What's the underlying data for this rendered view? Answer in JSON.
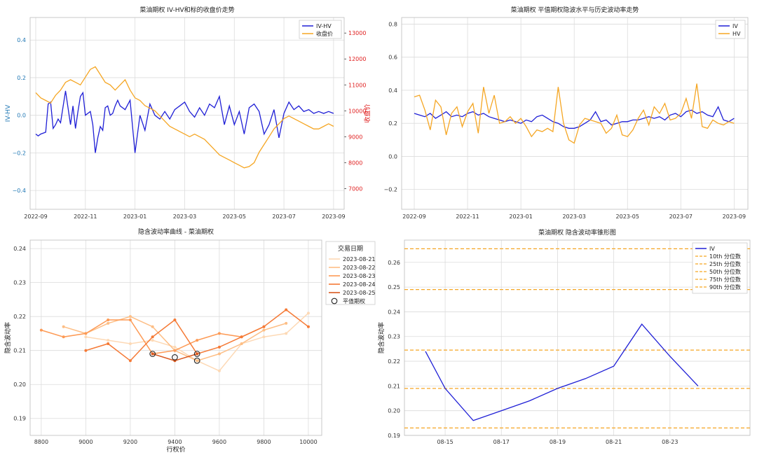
{
  "charts": [
    {
      "id": "c1",
      "type": "line",
      "title": "菜油期权 IV-HV和标的收盘价走势",
      "ylabel_left": "IV-HV",
      "ylabel_right": "收盘价",
      "x_ticks": [
        "2022-09",
        "2022-11",
        "2023-01",
        "2023-03",
        "2023-05",
        "2023-07",
        "2023-09"
      ],
      "x_range": [
        0,
        12.2
      ],
      "x_tick_pos": [
        0,
        2,
        4,
        6,
        8,
        10,
        12
      ],
      "y_left_range": [
        -0.5,
        0.52
      ],
      "y_left_ticks": [
        -0.4,
        -0.2,
        0.0,
        0.2,
        0.4
      ],
      "y_left_tick_labels": [
        "−0.4",
        "−0.2",
        "0.0",
        "0.2",
        "0.4"
      ],
      "y_right_range": [
        6200,
        13600
      ],
      "y_right_ticks": [
        7000,
        8000,
        9000,
        10000,
        11000,
        12000,
        13000
      ],
      "y_right_tick_labels": [
        "7000",
        "8000",
        "9000",
        "10000",
        "11000",
        "12000",
        "13000"
      ],
      "legend_position": "top-right",
      "series": [
        {
          "name": "IV-HV",
          "axis": "left",
          "color": "#1f1fd6",
          "x": [
            0,
            0.1,
            0.2,
            0.4,
            0.5,
            0.6,
            0.7,
            0.8,
            0.9,
            1.0,
            1.2,
            1.4,
            1.5,
            1.6,
            1.7,
            1.8,
            1.9,
            2.0,
            2.2,
            2.3,
            2.4,
            2.5,
            2.6,
            2.7,
            2.8,
            2.9,
            3.0,
            3.1,
            3.2,
            3.3,
            3.4,
            3.6,
            3.8,
            4.0,
            4.2,
            4.4,
            4.6,
            4.8,
            5.0,
            5.2,
            5.4,
            5.6,
            5.8,
            6.0,
            6.2,
            6.4,
            6.6,
            6.8,
            7.0,
            7.2,
            7.4,
            7.6,
            7.8,
            8.0,
            8.2,
            8.4,
            8.6,
            8.8,
            9.0,
            9.2,
            9.4,
            9.6,
            9.8,
            10.0,
            10.2,
            10.4,
            10.6,
            10.8,
            11.0,
            11.2,
            11.4,
            11.6,
            11.8,
            12.0
          ],
          "y": [
            -0.1,
            -0.11,
            -0.1,
            -0.09,
            0.06,
            0.07,
            -0.07,
            -0.05,
            -0.02,
            -0.04,
            0.13,
            -0.05,
            0.05,
            -0.07,
            0.02,
            0.1,
            0.12,
            0.0,
            0.02,
            -0.05,
            -0.2,
            -0.12,
            -0.06,
            -0.08,
            0.04,
            0.05,
            0.0,
            0.01,
            0.05,
            0.08,
            0.05,
            0.03,
            0.08,
            -0.2,
            0.0,
            -0.08,
            0.06,
            0.0,
            -0.02,
            0.02,
            -0.02,
            0.03,
            0.05,
            0.07,
            0.02,
            -0.01,
            0.04,
            0.0,
            0.06,
            0.04,
            0.1,
            -0.05,
            0.05,
            -0.05,
            0.02,
            -0.1,
            0.04,
            0.06,
            0.02,
            -0.1,
            -0.05,
            0.03,
            -0.12,
            0.01,
            0.07,
            0.03,
            0.05,
            0.02,
            0.03,
            0.01,
            0.02,
            0.01,
            0.02,
            0.01
          ]
        },
        {
          "name": "收盘价",
          "axis": "right",
          "color": "#f5a623",
          "x": [
            0,
            0.2,
            0.4,
            0.6,
            0.8,
            1.0,
            1.2,
            1.4,
            1.6,
            1.8,
            2.0,
            2.2,
            2.4,
            2.6,
            2.8,
            3.0,
            3.2,
            3.4,
            3.6,
            3.8,
            4.0,
            4.2,
            4.4,
            4.6,
            4.8,
            5.0,
            5.2,
            5.4,
            5.6,
            5.8,
            6.0,
            6.2,
            6.4,
            6.6,
            6.8,
            7.0,
            7.2,
            7.4,
            7.6,
            7.8,
            8.0,
            8.2,
            8.4,
            8.6,
            8.8,
            9.0,
            9.2,
            9.4,
            9.6,
            9.8,
            10.0,
            10.2,
            10.4,
            10.6,
            10.8,
            11.0,
            11.2,
            11.4,
            11.6,
            11.8,
            12.0
          ],
          "y": [
            10700,
            10500,
            10400,
            10300,
            10600,
            10800,
            11100,
            11200,
            11100,
            11000,
            11300,
            11600,
            11700,
            11400,
            11100,
            11000,
            10800,
            11000,
            11200,
            10800,
            10500,
            10400,
            10200,
            10100,
            10000,
            9800,
            9600,
            9400,
            9300,
            9200,
            9100,
            9000,
            9100,
            9000,
            8900,
            8700,
            8500,
            8300,
            8200,
            8100,
            8000,
            7900,
            7800,
            7850,
            8000,
            8400,
            8700,
            9000,
            9300,
            9500,
            9700,
            9800,
            9700,
            9600,
            9500,
            9400,
            9300,
            9300,
            9400,
            9500,
            9400
          ]
        }
      ]
    },
    {
      "id": "c2",
      "type": "line",
      "title": "菜油期权 平值期权隐波水平与历史波动率走势",
      "x_ticks": [
        "2022-09",
        "2022-11",
        "2023-01",
        "2023-03",
        "2023-05",
        "2023-07",
        "2023-09"
      ],
      "x_range": [
        0,
        12.2
      ],
      "x_tick_pos": [
        0,
        2,
        4,
        6,
        8,
        10,
        12
      ],
      "y_range": [
        -0.32,
        0.84
      ],
      "y_ticks": [
        -0.2,
        0.0,
        0.2,
        0.4,
        0.6,
        0.8
      ],
      "y_tick_labels": [
        "−0.2",
        "0.0",
        "0.2",
        "0.4",
        "0.6",
        "0.8"
      ],
      "legend_position": "top-right",
      "series": [
        {
          "name": "IV",
          "color": "#1f1fd6",
          "x": [
            0,
            0.2,
            0.4,
            0.6,
            0.8,
            1.0,
            1.2,
            1.4,
            1.6,
            1.8,
            2.0,
            2.2,
            2.4,
            2.6,
            2.8,
            3.0,
            3.2,
            3.4,
            3.6,
            3.8,
            4.0,
            4.2,
            4.4,
            4.6,
            4.8,
            5.0,
            5.2,
            5.4,
            5.6,
            5.8,
            6.0,
            6.2,
            6.4,
            6.6,
            6.8,
            7.0,
            7.2,
            7.4,
            7.6,
            7.8,
            8.0,
            8.2,
            8.4,
            8.6,
            8.8,
            9.0,
            9.2,
            9.4,
            9.6,
            9.8,
            10.0,
            10.2,
            10.4,
            10.6,
            10.8,
            11.0,
            11.2,
            11.4,
            11.6,
            11.8,
            12.0
          ],
          "y": [
            0.26,
            0.25,
            0.24,
            0.26,
            0.23,
            0.25,
            0.27,
            0.24,
            0.25,
            0.24,
            0.26,
            0.27,
            0.25,
            0.26,
            0.24,
            0.23,
            0.22,
            0.21,
            0.22,
            0.21,
            0.2,
            0.22,
            0.21,
            0.24,
            0.25,
            0.23,
            0.21,
            0.2,
            0.18,
            0.17,
            0.17,
            0.18,
            0.2,
            0.22,
            0.27,
            0.21,
            0.22,
            0.19,
            0.2,
            0.21,
            0.21,
            0.22,
            0.22,
            0.23,
            0.24,
            0.23,
            0.24,
            0.22,
            0.25,
            0.26,
            0.24,
            0.27,
            0.28,
            0.26,
            0.27,
            0.25,
            0.24,
            0.3,
            0.22,
            0.21,
            0.23
          ]
        },
        {
          "name": "HV",
          "color": "#f5a623",
          "x": [
            0,
            0.2,
            0.4,
            0.6,
            0.8,
            1.0,
            1.2,
            1.4,
            1.6,
            1.8,
            2.0,
            2.2,
            2.4,
            2.6,
            2.8,
            3.0,
            3.2,
            3.4,
            3.6,
            3.8,
            4.0,
            4.2,
            4.4,
            4.6,
            4.8,
            5.0,
            5.2,
            5.4,
            5.6,
            5.8,
            6.0,
            6.2,
            6.4,
            6.6,
            6.8,
            7.0,
            7.2,
            7.4,
            7.6,
            7.8,
            8.0,
            8.2,
            8.4,
            8.6,
            8.8,
            9.0,
            9.2,
            9.4,
            9.6,
            9.8,
            10.0,
            10.2,
            10.4,
            10.6,
            10.8,
            11.0,
            11.2,
            11.4,
            11.6,
            11.8,
            12.0
          ],
          "y": [
            0.36,
            0.37,
            0.28,
            0.16,
            0.34,
            0.3,
            0.13,
            0.26,
            0.3,
            0.18,
            0.27,
            0.32,
            0.14,
            0.42,
            0.26,
            0.37,
            0.2,
            0.21,
            0.24,
            0.2,
            0.23,
            0.18,
            0.12,
            0.16,
            0.15,
            0.17,
            0.15,
            0.42,
            0.2,
            0.1,
            0.08,
            0.19,
            0.23,
            0.22,
            0.21,
            0.2,
            0.14,
            0.17,
            0.25,
            0.13,
            0.12,
            0.16,
            0.23,
            0.28,
            0.19,
            0.3,
            0.26,
            0.32,
            0.22,
            0.23,
            0.26,
            0.35,
            0.23,
            0.44,
            0.18,
            0.17,
            0.22,
            0.2,
            0.19,
            0.21,
            0.2
          ]
        }
      ]
    },
    {
      "id": "c3",
      "type": "line",
      "title": "隐含波动率曲线 - 菜油期权",
      "xlabel": "行权价",
      "ylabel": "隐含波动率",
      "x_range": [
        8750,
        10060
      ],
      "x_ticks": [
        8800,
        9000,
        9200,
        9400,
        9600,
        9800,
        10000
      ],
      "x_tick_labels": [
        "8800",
        "9000",
        "9200",
        "9400",
        "9600",
        "9800",
        "10000"
      ],
      "y_range": [
        0.185,
        0.2425
      ],
      "y_ticks": [
        0.19,
        0.2,
        0.21,
        0.22,
        0.23,
        0.24
      ],
      "y_tick_labels": [
        "0.19",
        "0.20",
        "0.21",
        "0.22",
        "0.23",
        "0.24"
      ],
      "legend_title": "交易日期",
      "legend_position": "top-right",
      "atm_label": "平值期权",
      "series": [
        {
          "name": "2023-08-21",
          "color": "#fdd9b5",
          "x": [
            9000,
            9100,
            9200,
            9300,
            9400,
            9500,
            9600,
            9700,
            9800,
            9900,
            10000
          ],
          "y": [
            0.214,
            0.213,
            0.212,
            0.213,
            0.211,
            0.207,
            0.204,
            0.212,
            0.214,
            0.215,
            0.221
          ]
        },
        {
          "name": "2023-08-22",
          "color": "#fdbe85",
          "x": [
            8900,
            9000,
            9100,
            9200,
            9300,
            9400,
            9500,
            9600,
            9700,
            9800,
            9900
          ],
          "y": [
            0.217,
            0.215,
            0.218,
            0.22,
            0.217,
            0.21,
            0.207,
            0.209,
            0.212,
            0.216,
            0.218
          ]
        },
        {
          "name": "2023-08-23",
          "color": "#fd9a55",
          "x": [
            8800,
            8900,
            9000,
            9100,
            9200,
            9300,
            9400,
            9500,
            9600,
            9700,
            9800
          ],
          "y": [
            0.216,
            0.214,
            0.215,
            0.219,
            0.219,
            0.209,
            0.21,
            0.213,
            0.215,
            0.214,
            0.217
          ]
        },
        {
          "name": "2023-08-24",
          "color": "#f57a36",
          "x": [
            9000,
            9100,
            9200,
            9300,
            9400,
            9500,
            9600,
            9700,
            9800,
            9900,
            10000
          ],
          "y": [
            0.21,
            0.212,
            0.207,
            0.214,
            0.219,
            0.209,
            0.211,
            0.214,
            0.217,
            0.222,
            0.217
          ]
        },
        {
          "name": "2023-08-25",
          "color": "#d9581f",
          "x": [
            9300,
            9400,
            9500
          ],
          "y": [
            0.209,
            0.207,
            0.209
          ]
        }
      ],
      "atm_points": [
        {
          "x": 9300,
          "y": 0.209
        },
        {
          "x": 9400,
          "y": 0.208
        },
        {
          "x": 9500,
          "y": 0.207
        },
        {
          "x": 9500,
          "y": 0.209
        }
      ]
    },
    {
      "id": "c4",
      "type": "line",
      "title": "菜油期权 隐含波动率锥形图",
      "ylabel": "隐含波动率",
      "x_range": [
        0,
        11.4
      ],
      "x_ticks": [
        "08-15",
        "08-17",
        "08-19",
        "08-21",
        "08-23"
      ],
      "x_tick_pos": [
        1,
        3,
        5,
        7,
        9
      ],
      "y_range": [
        0.19,
        0.269
      ],
      "y_ticks": [
        0.19,
        0.2,
        0.21,
        0.22,
        0.23,
        0.24,
        0.25,
        0.26
      ],
      "y_tick_labels": [
        "0.19",
        "0.20",
        "0.21",
        "0.22",
        "0.23",
        "0.24",
        "0.25",
        "0.26"
      ],
      "legend_position": "top-right",
      "series": [
        {
          "name": "IV",
          "color": "#1f1fd6",
          "x": [
            0.3,
            1.0,
            2.0,
            3.0,
            4.0,
            5.0,
            6.0,
            7.0,
            8.0,
            9.0,
            10.0
          ],
          "y": [
            0.224,
            0.209,
            0.196,
            0.2,
            0.204,
            0.209,
            0.213,
            0.218,
            0.235,
            0.222,
            0.21
          ]
        }
      ],
      "percentiles": [
        {
          "name": "10th 分位数",
          "value": 0.193
        },
        {
          "name": "25th 分位数",
          "value": 0.209
        },
        {
          "name": "50th 分位数",
          "value": 0.2245
        },
        {
          "name": "75th 分位数",
          "value": 0.249
        },
        {
          "name": "90th 分位数",
          "value": 0.2655
        }
      ],
      "percentile_color": "#f5a623"
    }
  ]
}
